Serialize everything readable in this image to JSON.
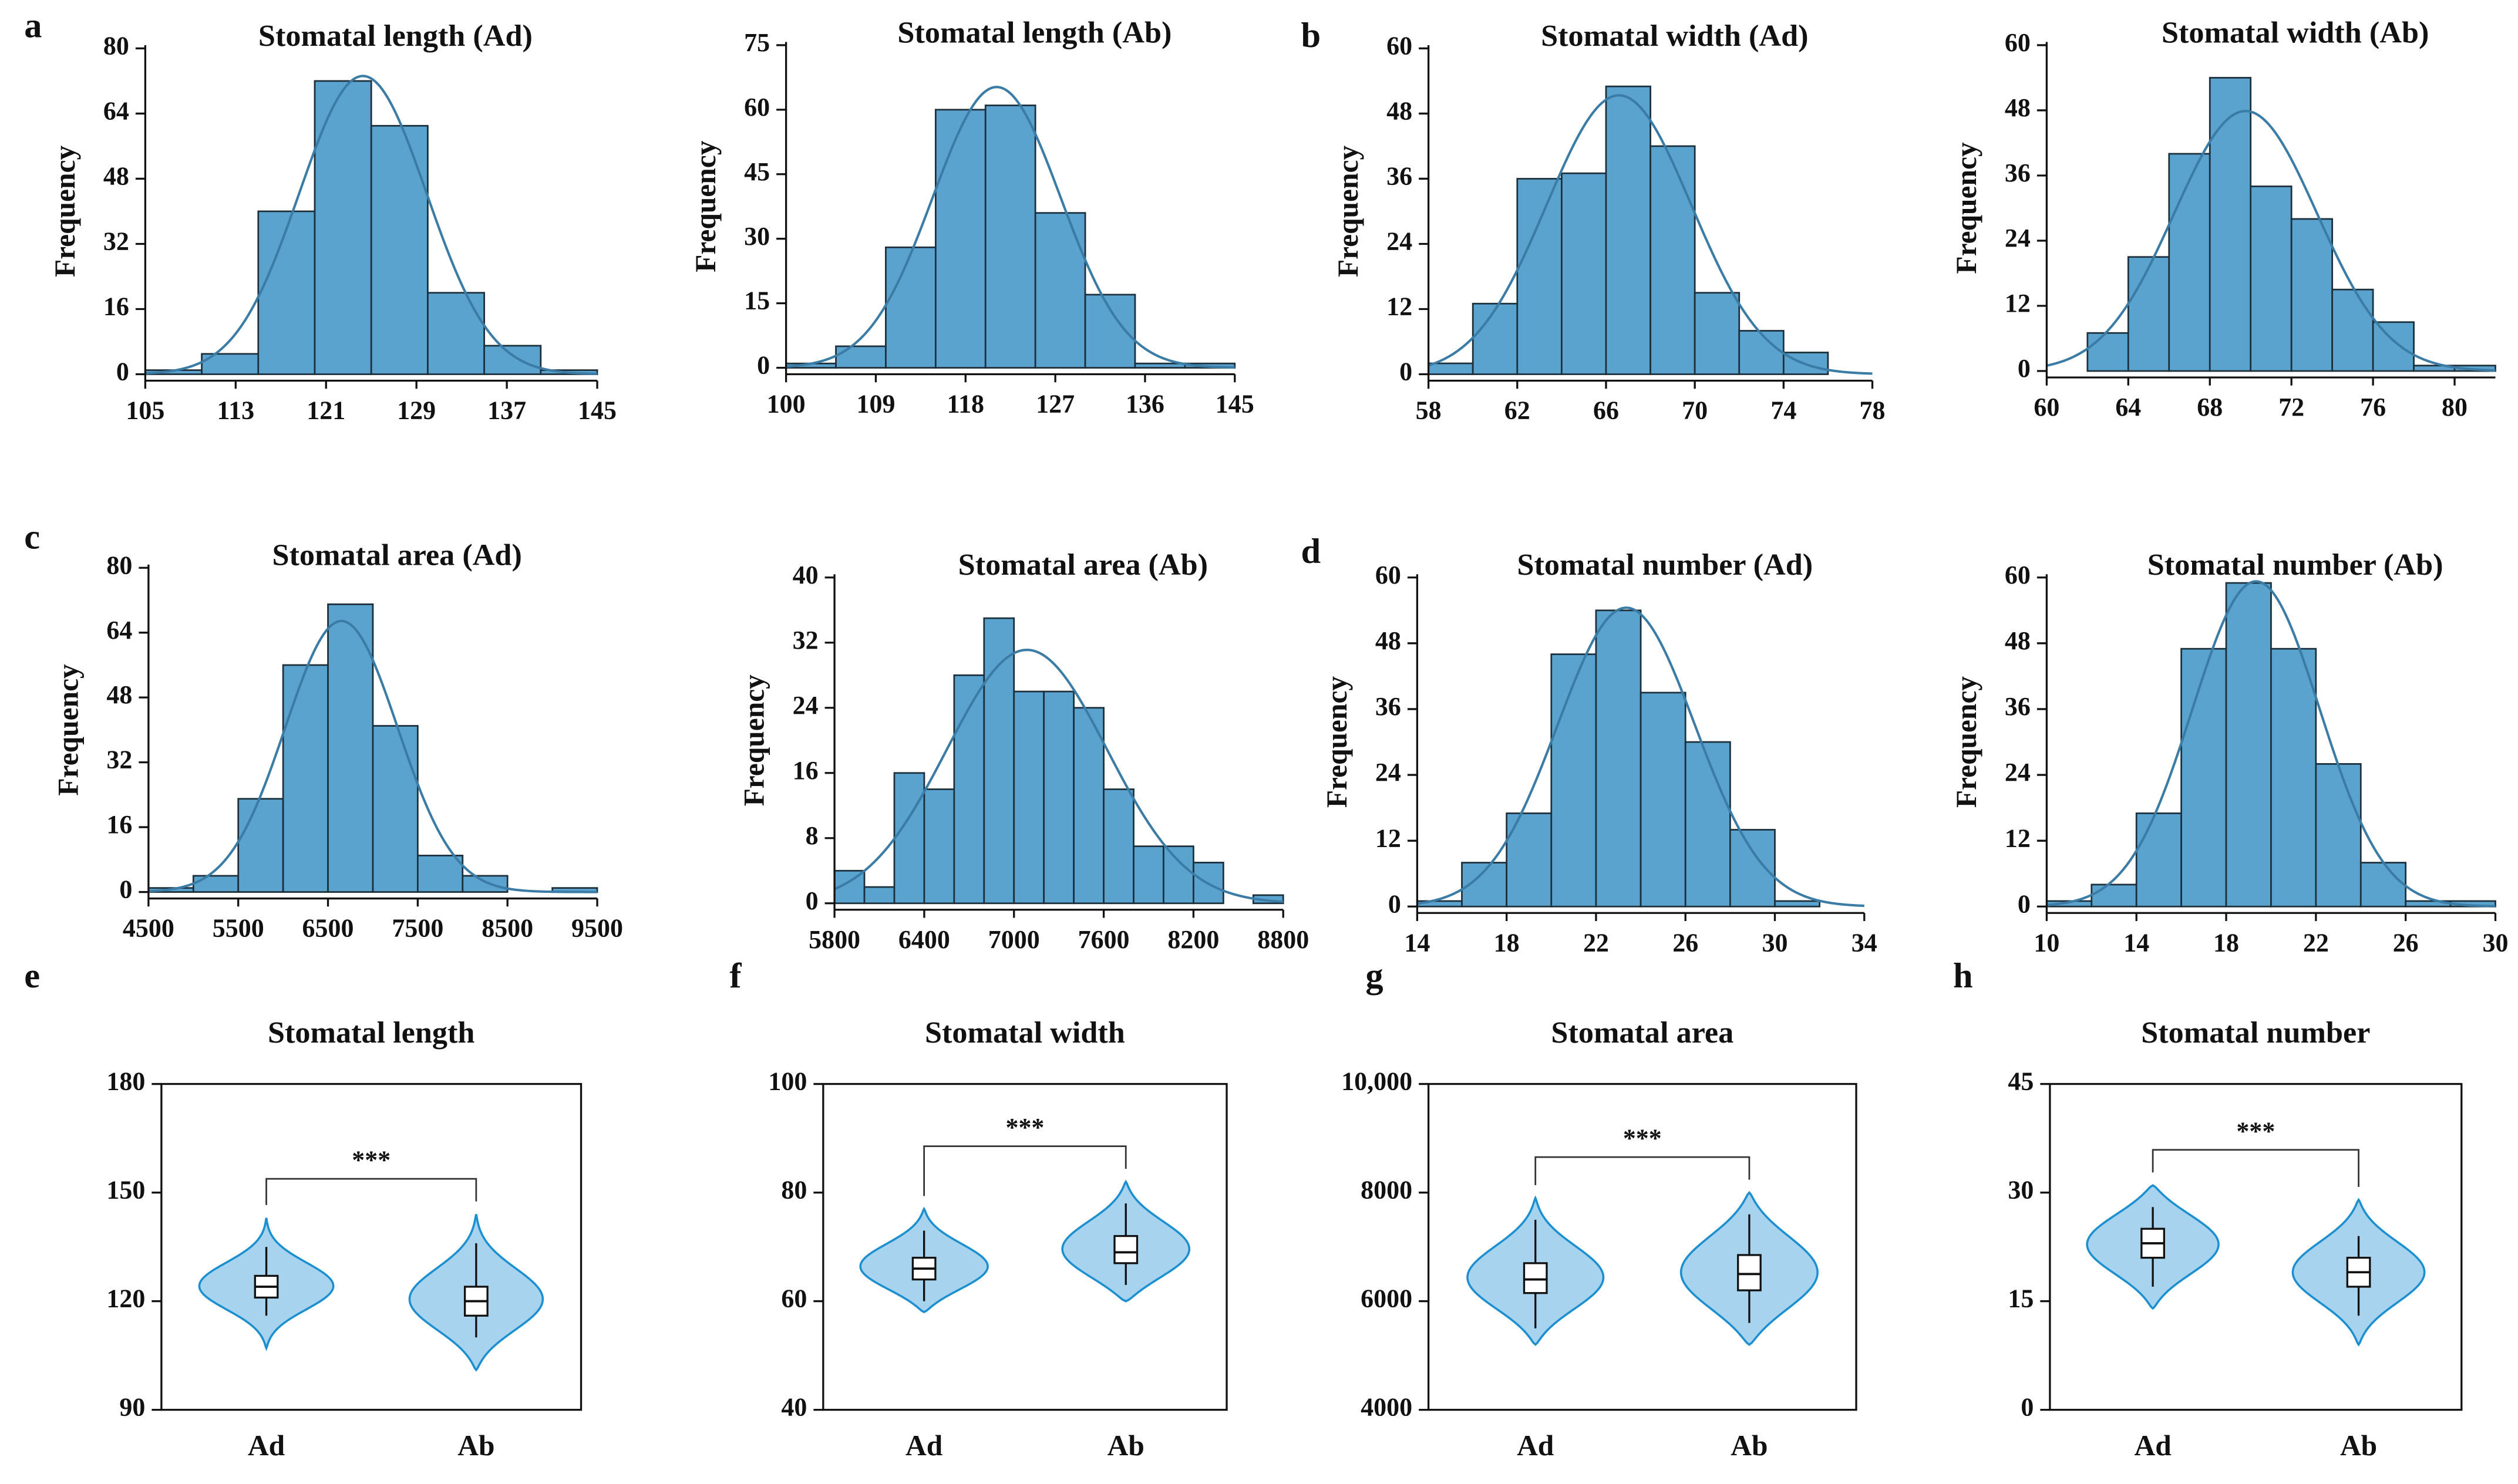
{
  "chart_data": [
    {
      "type": "histogram",
      "panel": "a",
      "title": "Stomatal length (Ad)",
      "y_label": "Frequency",
      "bins": [
        105,
        110,
        115,
        120,
        125,
        130,
        135,
        140,
        145
      ],
      "counts": [
        1,
        5,
        40,
        72,
        61,
        20,
        7,
        1
      ],
      "color": "#5ba3cf",
      "edge_color": "#1c2f3a",
      "fit": "normal",
      "fit_color": "#3a7ca5",
      "xlim": [
        105,
        145
      ],
      "xticks": [
        105,
        113,
        121,
        129,
        137,
        145
      ],
      "ylim": [
        0,
        80
      ],
      "yticks": [
        0,
        16,
        32,
        48,
        64,
        80
      ]
    },
    {
      "type": "histogram",
      "title": "Stomatal length (Ab)",
      "y_label": "Frequency",
      "bins": [
        100,
        105,
        110,
        115,
        120,
        125,
        130,
        135,
        140,
        145
      ],
      "counts": [
        1,
        5,
        28,
        60,
        61,
        36,
        17,
        1,
        1
      ],
      "color": "#5ba3cf",
      "edge_color": "#1c2f3a",
      "fit": "normal",
      "fit_color": "#3a7ca5",
      "xlim": [
        100,
        145
      ],
      "xticks": [
        100,
        109,
        118,
        127,
        136,
        145
      ],
      "ylim": [
        0,
        75
      ],
      "yticks": [
        0,
        15,
        30,
        45,
        60,
        75
      ]
    },
    {
      "type": "histogram",
      "panel": "b",
      "title": "Stomatal width (Ad)",
      "y_label": "Frequency",
      "bins": [
        58,
        60,
        62,
        64,
        66,
        68,
        70,
        72,
        74,
        76
      ],
      "counts": [
        2,
        13,
        36,
        37,
        53,
        42,
        15,
        8,
        4
      ],
      "color": "#5ba3cf",
      "edge_color": "#1c2f3a",
      "fit": "normal",
      "fit_color": "#3a7ca5",
      "xlim": [
        58,
        78
      ],
      "xticks": [
        58,
        62,
        66,
        70,
        74,
        78
      ],
      "ylim": [
        0,
        60
      ],
      "yticks": [
        0,
        12,
        24,
        36,
        48,
        60
      ]
    },
    {
      "type": "histogram",
      "title": "Stomatal width (Ab)",
      "y_label": "Frequency",
      "bins": [
        62,
        64,
        66,
        68,
        70,
        72,
        74,
        76,
        78,
        80,
        82
      ],
      "counts": [
        7,
        21,
        40,
        54,
        34,
        28,
        15,
        9,
        1,
        1
      ],
      "color": "#5ba3cf",
      "edge_color": "#1c2f3a",
      "fit": "normal",
      "fit_color": "#3a7ca5",
      "xlim": [
        60,
        82
      ],
      "xticks": [
        60,
        64,
        68,
        72,
        76,
        80
      ],
      "ylim": [
        0,
        60
      ],
      "yticks": [
        0,
        12,
        24,
        36,
        48,
        60
      ]
    },
    {
      "type": "histogram",
      "panel": "c",
      "title": "Stomatal area (Ad)",
      "y_label": "Frequency",
      "bins": [
        4500,
        5000,
        5500,
        6000,
        6500,
        7000,
        7500,
        8000,
        8500,
        9000,
        9500
      ],
      "counts": [
        1,
        4,
        23,
        56,
        71,
        41,
        9,
        4,
        0,
        1
      ],
      "color": "#5ba3cf",
      "edge_color": "#1c2f3a",
      "fit": "normal",
      "fit_color": "#3a7ca5",
      "xlim": [
        4500,
        9500
      ],
      "xticks": [
        4500,
        5500,
        6500,
        7500,
        8500,
        9500
      ],
      "ylim": [
        0,
        80
      ],
      "yticks": [
        0,
        16,
        32,
        48,
        64,
        80
      ]
    },
    {
      "type": "histogram",
      "title": "Stomatal area (Ab)",
      "y_label": "Frequency",
      "bins": [
        5800,
        6000,
        6200,
        6400,
        6600,
        6800,
        7000,
        7200,
        7400,
        7600,
        7800,
        8000,
        8200,
        8400,
        8600,
        8800
      ],
      "counts": [
        4,
        2,
        16,
        14,
        28,
        35,
        26,
        26,
        24,
        14,
        7,
        7,
        5,
        0,
        1
      ],
      "color": "#5ba3cf",
      "edge_color": "#1c2f3a",
      "fit": "normal",
      "fit_color": "#3a7ca5",
      "xlim": [
        5800,
        8800
      ],
      "xticks": [
        5800,
        6400,
        7000,
        7600,
        8200,
        8800
      ],
      "ylim": [
        0,
        40
      ],
      "yticks": [
        0,
        8,
        16,
        24,
        32,
        40
      ]
    },
    {
      "type": "histogram",
      "panel": "d",
      "title": "Stomatal number (Ad)",
      "y_label": "Frequency",
      "bins": [
        14,
        16,
        18,
        20,
        22,
        24,
        26,
        28,
        30,
        32,
        34
      ],
      "counts": [
        1,
        8,
        17,
        46,
        54,
        39,
        30,
        14,
        1,
        0
      ],
      "color": "#5ba3cf",
      "edge_color": "#1c2f3a",
      "fit": "normal",
      "fit_color": "#3a7ca5",
      "xlim": [
        14,
        34
      ],
      "xticks": [
        14,
        18,
        22,
        26,
        30,
        34
      ],
      "ylim": [
        0,
        60
      ],
      "yticks": [
        0,
        12,
        24,
        36,
        48,
        60
      ]
    },
    {
      "type": "histogram",
      "title": "Stomatal number (Ab)",
      "y_label": "Frequency",
      "bins": [
        10,
        12,
        14,
        16,
        18,
        20,
        22,
        24,
        26,
        28,
        30
      ],
      "counts": [
        1,
        4,
        17,
        47,
        59,
        47,
        26,
        8,
        1,
        1
      ],
      "color": "#5ba3cf",
      "edge_color": "#1c2f3a",
      "fit": "normal",
      "fit_color": "#3a7ca5",
      "xlim": [
        10,
        30
      ],
      "xticks": [
        10,
        14,
        18,
        22,
        26,
        30
      ],
      "ylim": [
        0,
        60
      ],
      "yticks": [
        0,
        12,
        24,
        36,
        48,
        60
      ]
    },
    {
      "type": "violin",
      "panel": "e",
      "title": "Stomatal length",
      "categories": [
        "Ad",
        "Ab"
      ],
      "medians": [
        124,
        120
      ],
      "q1": [
        121,
        116
      ],
      "q3": [
        127,
        124
      ],
      "lower_whiskers": [
        116,
        110
      ],
      "upper_whiskers": [
        135,
        136
      ],
      "mins": [
        107,
        101
      ],
      "maxs": [
        143,
        144
      ],
      "annotation": "***",
      "color": "#a7d3ee",
      "edge_color": "#1b8fcf",
      "ylim": [
        90,
        180
      ],
      "yticks": [
        90,
        120,
        150,
        180
      ]
    },
    {
      "type": "violin",
      "panel": "f",
      "title": "Stomatal width",
      "categories": [
        "Ad",
        "Ab"
      ],
      "medians": [
        66,
        69
      ],
      "q1": [
        64,
        67
      ],
      "q3": [
        68,
        72
      ],
      "lower_whiskers": [
        60,
        63
      ],
      "upper_whiskers": [
        73,
        78
      ],
      "mins": [
        58,
        60
      ],
      "maxs": [
        77,
        82
      ],
      "annotation": "***",
      "color": "#a7d3ee",
      "edge_color": "#1b8fcf",
      "ylim": [
        40,
        100
      ],
      "yticks": [
        40,
        60,
        80,
        100
      ]
    },
    {
      "type": "violin",
      "panel": "g",
      "title": "Stomatal area",
      "categories": [
        "Ad",
        "Ab"
      ],
      "medians": [
        6400,
        6500
      ],
      "q1": [
        6150,
        6200
      ],
      "q3": [
        6700,
        6850
      ],
      "lower_whiskers": [
        5500,
        5600
      ],
      "upper_whiskers": [
        7500,
        7600
      ],
      "mins": [
        5200,
        5200
      ],
      "maxs": [
        7900,
        8000
      ],
      "annotation": "***",
      "color": "#a7d3ee",
      "edge_color": "#1b8fcf",
      "ylim": [
        4000,
        10000
      ],
      "yticks": [
        4000,
        6000,
        8000,
        {
          "value": 10000,
          "label": "10,000"
        }
      ]
    },
    {
      "type": "violin",
      "panel": "h",
      "title": "Stomatal number",
      "categories": [
        "Ad",
        "Ab"
      ],
      "medians": [
        23,
        19
      ],
      "q1": [
        21,
        17
      ],
      "q3": [
        25,
        21
      ],
      "lower_whiskers": [
        17,
        13
      ],
      "upper_whiskers": [
        28,
        24
      ],
      "mins": [
        14,
        9
      ],
      "maxs": [
        31,
        29
      ],
      "annotation": "***",
      "color": "#a7d3ee",
      "edge_color": "#1b8fcf",
      "ylim": [
        0,
        45
      ],
      "yticks": [
        0,
        15,
        30,
        45
      ]
    }
  ]
}
